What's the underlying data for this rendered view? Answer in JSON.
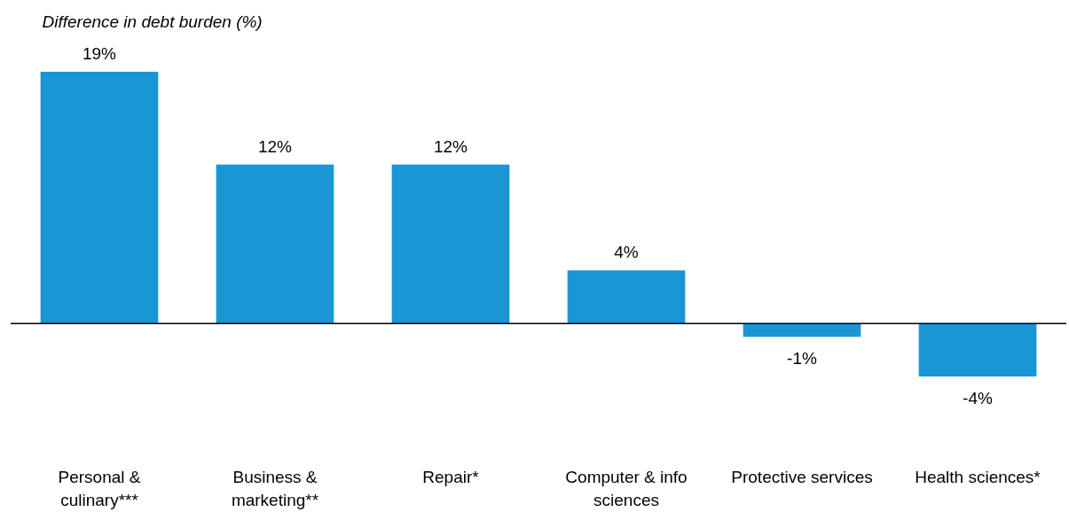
{
  "chart_data": {
    "type": "bar",
    "ylabel": "Difference in debt burden (%)",
    "categories": [
      "Personal &\nculinary***",
      "Business &\nmarketing**",
      "Repair*",
      "Computer  & info\nsciences",
      "Protective services",
      "Health sciences*"
    ],
    "values": [
      19,
      12,
      12,
      4,
      -1,
      -4
    ],
    "value_labels": [
      "19%",
      "12%",
      "12%",
      "4%",
      "-1%",
      "-4%"
    ],
    "color": "#1a96d4",
    "ref_lines": [
      {
        "axis": "y",
        "value": 0,
        "color": "#000000"
      }
    ],
    "grid": false
  }
}
